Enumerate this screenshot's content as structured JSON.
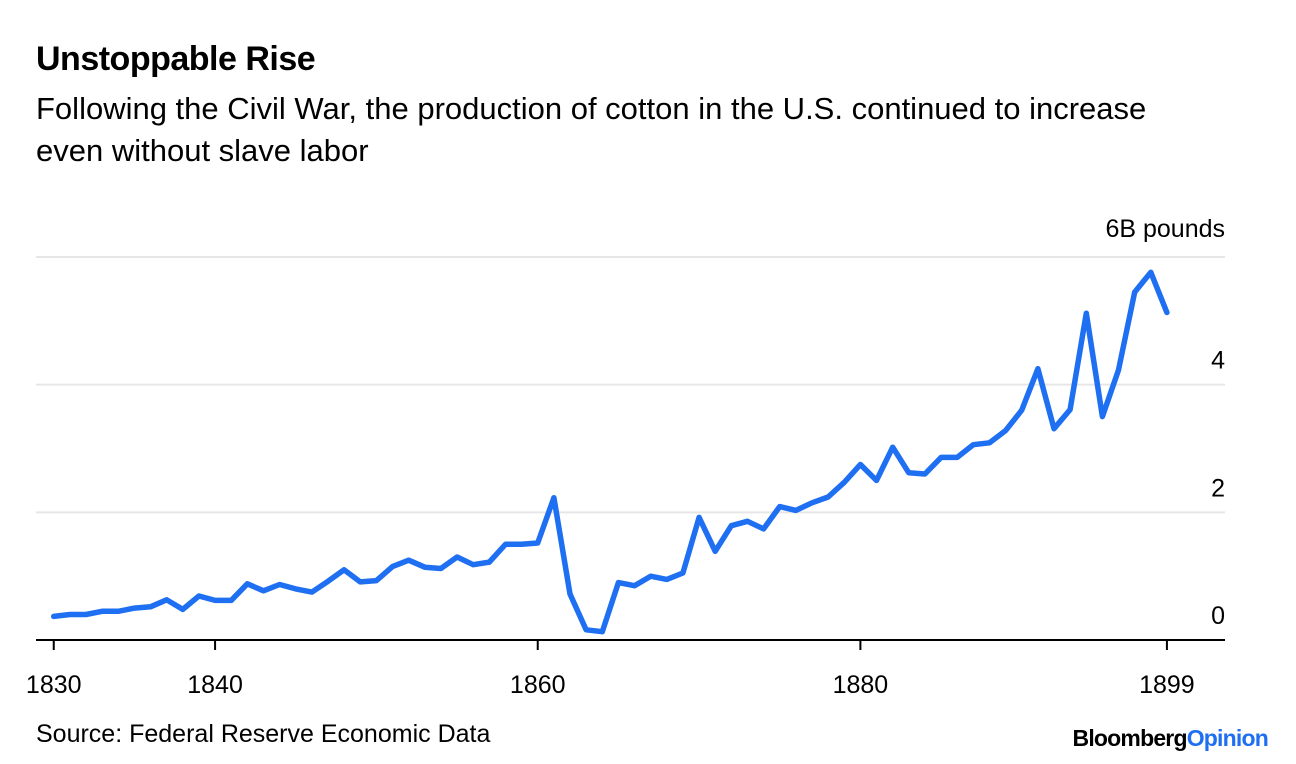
{
  "header": {
    "title": "Unstoppable Rise",
    "subtitle": "Following the Civil War, the production of cotton in the U.S. continued to increase even without slave labor"
  },
  "footer": {
    "source": "Source: Federal Reserve Economic Data",
    "brand_main": "Bloomberg",
    "brand_accent": "Opinion"
  },
  "chart_data": {
    "type": "line",
    "title": "Unstoppable Rise",
    "subtitle": "Following the Civil War, the production of cotton in the U.S. continued to increase even without slave labor",
    "xlabel": "",
    "ylabel": "",
    "xlim": [
      1828.9,
      1902.6
    ],
    "ylim": [
      0,
      6
    ],
    "x_ticks": [
      {
        "value": 1830,
        "label": "1830"
      },
      {
        "value": 1840,
        "label": "1840"
      },
      {
        "value": 1860,
        "label": "1860"
      },
      {
        "value": 1880,
        "label": "1880"
      },
      {
        "value": 1899,
        "label": "1899"
      }
    ],
    "y_ticks": [
      {
        "value": 0,
        "label": "0"
      },
      {
        "value": 2,
        "label": "2"
      },
      {
        "value": 4,
        "label": "4"
      },
      {
        "value": 6,
        "label": "6B pounds"
      }
    ],
    "grid": true,
    "legend": "none",
    "line_color": "#1f6ff2",
    "series": [
      {
        "x": [
          1830,
          1831,
          1832,
          1833,
          1834,
          1835,
          1836,
          1837,
          1838,
          1839,
          1840,
          1841,
          1842,
          1843,
          1844,
          1845,
          1846,
          1847,
          1848,
          1849,
          1850,
          1851,
          1852,
          1853,
          1854,
          1855,
          1856,
          1857,
          1858,
          1859,
          1860,
          1861,
          1862,
          1863,
          1864,
          1865,
          1866,
          1867,
          1868,
          1869,
          1870,
          1871,
          1872,
          1873,
          1874,
          1875,
          1876,
          1877,
          1878,
          1879,
          1880,
          1881,
          1882,
          1883,
          1884,
          1885,
          1886,
          1887,
          1888,
          1889,
          1890,
          1891,
          1892,
          1893,
          1894,
          1895,
          1896,
          1897,
          1898,
          1899
        ],
        "values": [
          0.37,
          0.4,
          0.4,
          0.45,
          0.45,
          0.5,
          0.52,
          0.63,
          0.48,
          0.69,
          0.62,
          0.62,
          0.88,
          0.77,
          0.87,
          0.8,
          0.75,
          0.92,
          1.1,
          0.91,
          0.93,
          1.15,
          1.25,
          1.14,
          1.12,
          1.3,
          1.18,
          1.22,
          1.5,
          1.5,
          1.52,
          2.23,
          0.72,
          0.16,
          0.13,
          0.9,
          0.85,
          1.0,
          0.95,
          1.05,
          1.92,
          1.39,
          1.79,
          1.86,
          1.74,
          2.09,
          2.03,
          2.15,
          2.24,
          2.47,
          2.75,
          2.5,
          3.02,
          2.62,
          2.6,
          2.86,
          2.86,
          3.06,
          3.09,
          3.28,
          3.6,
          4.25,
          3.31,
          3.61,
          5.12,
          3.5,
          4.23,
          5.45,
          5.76,
          5.13
        ]
      }
    ]
  }
}
